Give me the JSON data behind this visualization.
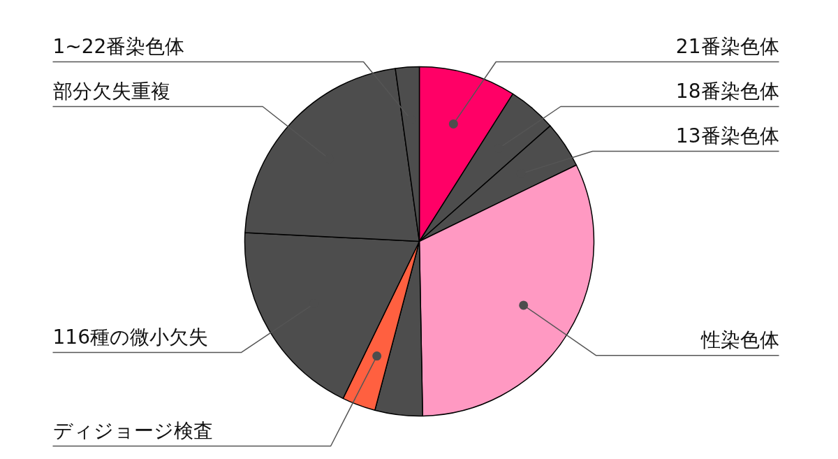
{
  "chart_data": {
    "type": "pie",
    "categories": [
      "21番染色体",
      "18番染色体",
      "13番染色体",
      "性染色体",
      null,
      "ディジョージ検査",
      "116種の微小欠失",
      "部分欠失重複",
      "1~22番染色体"
    ],
    "values": [
      9.0,
      4.5,
      4.3,
      31.9,
      4.4,
      3.1,
      18.6,
      22.0,
      2.2
    ],
    "colors": [
      "#ff0066",
      "#4d4d4d",
      "#4d4d4d",
      "#ff99c2",
      "#4d4d4d",
      "#ff6040",
      "#4d4d4d",
      "#4d4d4d",
      "#4d4d4d"
    ]
  }
}
